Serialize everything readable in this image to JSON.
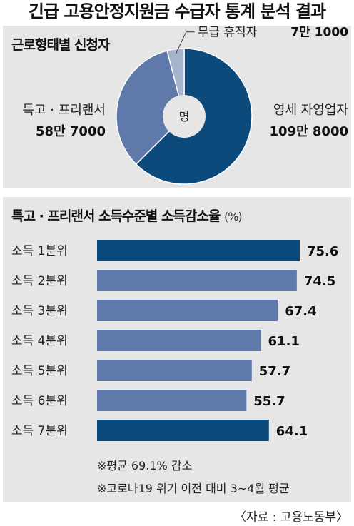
{
  "title": "긴급 고용안정지원금 수급자 통계 분석 결과",
  "source": "〈자료 : 고용노동부〉",
  "chart_data": [
    {
      "type": "pie",
      "title": "근로형태별 신청자",
      "center_label": "명",
      "slices": [
        {
          "label": "영세 자영업자",
          "value_text": "109만 8000",
          "value": 1098000,
          "color": "#0d4a7c"
        },
        {
          "label": "특고 · 프리랜서",
          "value_text": "58만 7000",
          "value": 587000,
          "color": "#5f7aaa"
        },
        {
          "label": "무급 휴직자",
          "value_text": "7만 1000",
          "value": 71000,
          "color": "#a5b3cb"
        }
      ]
    },
    {
      "type": "bar",
      "orientation": "horizontal",
      "title": "특고 · 프리랜서 소득수준별 소득감소율",
      "unit": "(%)",
      "categories": [
        "소득 1분위",
        "소득 2분위",
        "소득 3분위",
        "소득 4분위",
        "소득 5분위",
        "소득 6분위",
        "소득 7분위"
      ],
      "values": [
        75.6,
        74.5,
        67.4,
        61.1,
        57.7,
        55.7,
        64.1
      ],
      "value_labels": [
        "75.6",
        "74.5",
        "67.4",
        "61.1",
        "57.7",
        "55.7",
        "64.1"
      ],
      "colors": [
        "#0d4a7c",
        "#5f7aaa",
        "#5f7aaa",
        "#5f7aaa",
        "#5f7aaa",
        "#5f7aaa",
        "#0d4a7c"
      ],
      "xlim": [
        0,
        75.6
      ],
      "notes": [
        "※평균 69.1% 감소",
        "※코로나19 위기 이전 대비 3~4월 평균"
      ]
    }
  ]
}
